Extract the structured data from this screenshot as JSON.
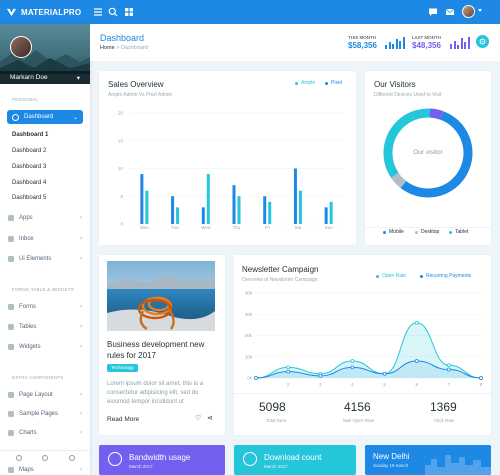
{
  "brand": {
    "name": "MATERIALPRO"
  },
  "topbar": {
    "icons": [
      "menu-icon",
      "search-icon",
      "grid-icon",
      "message-icon",
      "mail-icon",
      "user-avatar"
    ]
  },
  "profile": {
    "name": "Markarn Doe"
  },
  "sidebar": {
    "personal_label": "PERSONAL",
    "active": {
      "label": "Dashboard",
      "icon": "gauge-icon"
    },
    "sub_items": [
      "Dashboard 1",
      "Dashboard 2",
      "Dashboard 3",
      "Dashboard 4",
      "Dashboard 5"
    ],
    "items": [
      {
        "label": "Apps",
        "icon": "apps-icon"
      },
      {
        "label": "Inbox",
        "icon": "inbox-icon"
      },
      {
        "label": "Ui Elements",
        "icon": "layers-icon"
      }
    ],
    "forms_label": "FORMS,TABLE & WIDGETS",
    "items2": [
      {
        "label": "Forms",
        "icon": "file-icon"
      },
      {
        "label": "Tables",
        "icon": "table-icon"
      },
      {
        "label": "Widgets",
        "icon": "widget-icon"
      }
    ],
    "extra_label": "EXTRA COMPONENTS",
    "items3": [
      {
        "label": "Page Layout",
        "icon": "layout-icon"
      },
      {
        "label": "Sample Pages",
        "icon": "book-icon"
      },
      {
        "label": "Charts",
        "icon": "chart-icon"
      },
      {
        "label": "Maps",
        "icon": "map-icon"
      }
    ]
  },
  "header": {
    "title": "Dashboard",
    "breadcrumb_home": "Home",
    "breadcrumb_sep": ">",
    "breadcrumb_current": "Dashboard",
    "this_month_label": "THIS MONTH",
    "this_month_value": "$58,356",
    "last_month_label": "LAST MONTH",
    "last_month_value": "$48,356",
    "colors": {
      "blue": "#1e88e5",
      "purple": "#7460ee"
    }
  },
  "sales": {
    "title": "Sales Overview",
    "subtitle": "Ample Admin Vs Pixel Admin",
    "legend": [
      {
        "name": "Ample",
        "color": "#26c6da"
      },
      {
        "name": "Pixel",
        "color": "#1e88e5"
      }
    ]
  },
  "visitors": {
    "title": "Our Visitors",
    "subtitle": "Different Devices Used to Visit",
    "center_label": "Our visitor",
    "legend": [
      {
        "name": "Mobile",
        "color": "#1e88e5"
      },
      {
        "name": "Desktop",
        "color": "#b0bec5"
      },
      {
        "name": "Tablet",
        "color": "#26c6da"
      }
    ]
  },
  "blog": {
    "title": "Business development new rules for 2017",
    "badge": "Technology",
    "excerpt": "Lorem ipsum dolor sit amet, this is a consectetur adipisicing elit, sed do eiusmod tempor incididunt ut",
    "read_more": "Read More"
  },
  "newsletter": {
    "title": "Newsletter Campaign",
    "subtitle": "Overview of Newsletter Campaign",
    "legend": [
      {
        "name": "Open Rate",
        "color": "#26c6da"
      },
      {
        "name": "Recurring Payments",
        "color": "#1e88e5"
      }
    ],
    "stats": [
      {
        "value": "5098",
        "label": "Total Sent"
      },
      {
        "value": "4156",
        "label": "Mail Open Rate"
      },
      {
        "value": "1369",
        "label": "Click Rate"
      }
    ]
  },
  "tiles": [
    {
      "title": "Bandwidth usage",
      "sub": "March 2017",
      "color": "#7460ee",
      "icon": "pie-icon"
    },
    {
      "title": "Download count",
      "sub": "March 2017",
      "color": "#26c6da",
      "icon": "cloud-download-icon"
    },
    {
      "title": "New Delhi",
      "sub": "Sunday 15 march",
      "color": "#1e88e5",
      "icon": "city-icon"
    }
  ],
  "chart_data": [
    {
      "type": "bar",
      "title": "Sales Overview",
      "categories": [
        "Mon",
        "Tue",
        "Wed",
        "Thu",
        "Fri",
        "Sat",
        "Sun"
      ],
      "series": [
        {
          "name": "Ample",
          "values": [
            6,
            3,
            9,
            5,
            4,
            6,
            4
          ]
        },
        {
          "name": "Pixel",
          "values": [
            9,
            5,
            3,
            7,
            5,
            10,
            3
          ]
        }
      ],
      "ylim": [
        0,
        20
      ],
      "yticks": [
        0,
        5,
        10,
        15,
        20
      ]
    },
    {
      "type": "pie",
      "title": "Our Visitors",
      "labels": [
        "Mobile",
        "Desktop",
        "Tablet"
      ],
      "values": [
        55,
        5,
        40
      ]
    },
    {
      "type": "area",
      "title": "Newsletter Campaign",
      "x": [
        1,
        2,
        3,
        4,
        5,
        6,
        7,
        8
      ],
      "series": [
        {
          "name": "Open Rate",
          "values": [
            0,
            5000,
            2000,
            8000,
            2000,
            26000,
            6000,
            0
          ]
        },
        {
          "name": "Recurring Payments",
          "values": [
            0,
            3000,
            1000,
            5000,
            2000,
            8000,
            4000,
            0
          ]
        }
      ],
      "ylim": [
        0,
        40000
      ],
      "yticks": [
        "0k",
        "10k",
        "20k",
        "30k",
        "40k"
      ],
      "xticks": [
        "2",
        "3",
        "4",
        "5",
        "6",
        "7",
        "8"
      ]
    }
  ]
}
